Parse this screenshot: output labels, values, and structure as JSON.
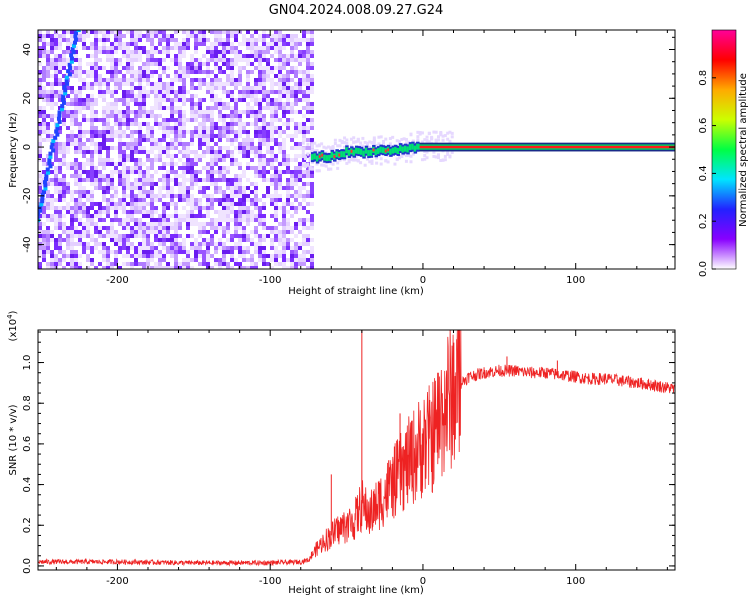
{
  "title": "GN04.2024.008.09.27.G24",
  "chart_data": [
    {
      "type": "heatmap",
      "xlabel": "Height of straight line (km)",
      "ylabel": "Frequency (Hz)",
      "xlim": [
        -252,
        165
      ],
      "ylim": [
        -50,
        48
      ],
      "x_ticks": [
        -200,
        -100,
        0,
        100
      ],
      "x_tick_labels": [
        "-200",
        "-100",
        "0",
        "100"
      ],
      "y_ticks": [
        -40,
        -20,
        0,
        20,
        40
      ],
      "y_tick_labels": [
        "-40",
        "-20",
        "0",
        "20",
        "40"
      ],
      "noise_region_x": [
        -252,
        -72
      ],
      "signal_track": [
        {
          "x": -72,
          "y": -4
        },
        {
          "x": -60,
          "y": -4
        },
        {
          "x": -50,
          "y": -2
        },
        {
          "x": -40,
          "y": -2
        },
        {
          "x": -30,
          "y": -1.5
        },
        {
          "x": -20,
          "y": -1.5
        },
        {
          "x": -10,
          "y": -0.5
        },
        {
          "x": 0,
          "y": 0
        },
        {
          "x": 165,
          "y": 0
        }
      ],
      "diagonal_streak": [
        {
          "x": -252,
          "y": -30
        },
        {
          "x": -226,
          "y": 48
        }
      ],
      "colorbar": {
        "label": "Normalized spectral amplitude",
        "range": [
          0.0,
          1.0
        ],
        "ticks": [
          0.0,
          0.2,
          0.4,
          0.6,
          0.8
        ],
        "tick_labels": [
          "0.0",
          "0.2",
          "0.4",
          "0.6",
          "0.8"
        ],
        "colors": [
          "#ffffff",
          "#8800ff",
          "#2222ff",
          "#00e5ff",
          "#00ff44",
          "#ccff00",
          "#ffaa00",
          "#ff0000",
          "#ff0099"
        ]
      }
    },
    {
      "type": "line",
      "xlabel": "Height of straight line (km)",
      "ylabel": "SNR (10 * v/v)",
      "multiplier": "(x10",
      "multiplier_exp": "4",
      "multiplier_close": ")",
      "xlim": [
        -252,
        165
      ],
      "ylim": [
        -0.02,
        1.16
      ],
      "x_ticks": [
        -200,
        -100,
        0,
        100
      ],
      "x_tick_labels": [
        "-200",
        "-100",
        "0",
        "100"
      ],
      "y_ticks": [
        0.0,
        0.2,
        0.4,
        0.6,
        0.8,
        1.0
      ],
      "y_tick_labels": [
        "0.0",
        "0.2",
        "0.4",
        "0.6",
        "0.8",
        "1.0"
      ],
      "color": "#ee2222",
      "series": [
        {
          "x": [
            -252,
            -200,
            -150,
            -100,
            -80,
            -75,
            -70,
            -65,
            -60,
            -55,
            -50,
            -45,
            -40,
            -35,
            -30,
            -25,
            -20,
            -15,
            -10,
            -5,
            0,
            5,
            10,
            15,
            20,
            25,
            30,
            40,
            50,
            60,
            70,
            80,
            90,
            100,
            110,
            120,
            130,
            140,
            150,
            165
          ],
          "y": [
            0.02,
            0.02,
            0.015,
            0.015,
            0.02,
            0.03,
            0.08,
            0.12,
            0.15,
            0.18,
            0.2,
            0.22,
            0.3,
            0.25,
            0.3,
            0.35,
            0.4,
            0.45,
            0.5,
            0.55,
            0.6,
            0.62,
            0.7,
            0.8,
            0.86,
            0.9,
            0.93,
            0.95,
            0.96,
            0.96,
            0.95,
            0.95,
            0.94,
            0.93,
            0.92,
            0.92,
            0.91,
            0.9,
            0.89,
            0.87
          ]
        }
      ],
      "spikes": [
        {
          "x": -40,
          "y": 1.16
        },
        {
          "x": -60,
          "y": 0.45
        },
        {
          "x": -15,
          "y": 0.75
        },
        {
          "x": 55,
          "y": 1.03
        },
        {
          "x": 88,
          "y": 1.01
        }
      ]
    }
  ]
}
